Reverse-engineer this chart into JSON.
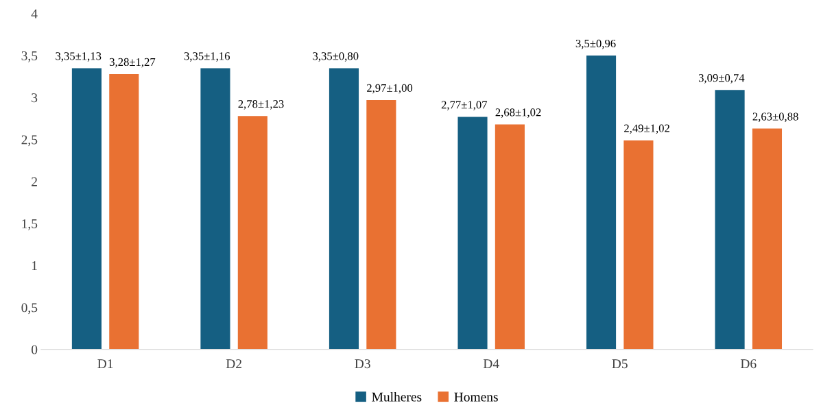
{
  "chart_data": {
    "type": "bar",
    "categories": [
      "D1",
      "D2",
      "D3",
      "D4",
      "D5",
      "D6"
    ],
    "series": [
      {
        "name": "Mulheres",
        "color": "#155f82",
        "values": [
          3.35,
          3.35,
          3.35,
          2.77,
          3.5,
          3.09
        ],
        "value_labels": [
          "3,35±1,13",
          "3,35±1,16",
          "3,35±0,80",
          "2,77±1,07",
          "3,5±0,96",
          "3,09±0,74"
        ]
      },
      {
        "name": "Homens",
        "color": "#e97132",
        "values": [
          3.28,
          2.78,
          2.97,
          2.68,
          2.49,
          2.63
        ],
        "value_labels": [
          "3,28±1,27",
          "2,78±1,23",
          "2,97±1,00",
          "2,68±1,02",
          "2,49±1,02",
          "2,63±0,88"
        ]
      }
    ],
    "ylim": [
      0,
      4
    ],
    "yticks": [
      0,
      {
        "value": 0.5,
        "label": "0,5"
      },
      1,
      {
        "value": 1.5,
        "label": "1,5"
      },
      2,
      {
        "value": 2.5,
        "label": "2,5"
      },
      3,
      {
        "value": 3.5,
        "label": "3,5"
      },
      4
    ],
    "grid": false,
    "legend": "bottom"
  }
}
